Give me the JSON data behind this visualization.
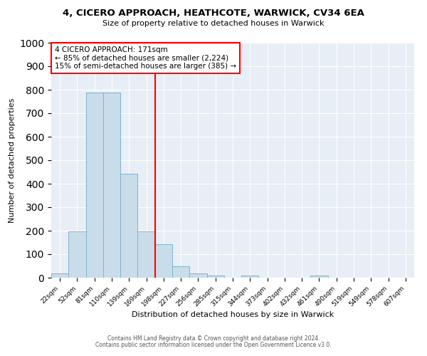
{
  "title": "4, CICERO APPROACH, HEATHCOTE, WARWICK, CV34 6EA",
  "subtitle": "Size of property relative to detached houses in Warwick",
  "xlabel": "Distribution of detached houses by size in Warwick",
  "ylabel": "Number of detached properties",
  "bar_color": "#c9dcea",
  "bar_edge_color": "#7ab4d0",
  "categories": [
    "22sqm",
    "52sqm",
    "81sqm",
    "110sqm",
    "139sqm",
    "169sqm",
    "198sqm",
    "227sqm",
    "256sqm",
    "285sqm",
    "315sqm",
    "344sqm",
    "373sqm",
    "402sqm",
    "432sqm",
    "461sqm",
    "490sqm",
    "519sqm",
    "549sqm",
    "578sqm",
    "607sqm"
  ],
  "values": [
    18,
    197,
    787,
    787,
    443,
    198,
    143,
    50,
    17,
    10,
    0,
    10,
    0,
    0,
    0,
    10,
    0,
    0,
    0,
    0,
    0
  ],
  "vline_x": 5.5,
  "vline_color": "red",
  "annotation_text": "4 CICERO APPROACH: 171sqm\n← 85% of detached houses are smaller (2,224)\n15% of semi-detached houses are larger (385) →",
  "annotation_box_color": "white",
  "annotation_edge_color": "red",
  "ylim": [
    0,
    1000
  ],
  "yticks": [
    0,
    100,
    200,
    300,
    400,
    500,
    600,
    700,
    800,
    900,
    1000
  ],
  "background_color": "#e8eef5",
  "grid_color": "white",
  "footer_line1": "Contains HM Land Registry data © Crown copyright and database right 2024.",
  "footer_line2": "Contains public sector information licensed under the Open Government Licence v3.0."
}
